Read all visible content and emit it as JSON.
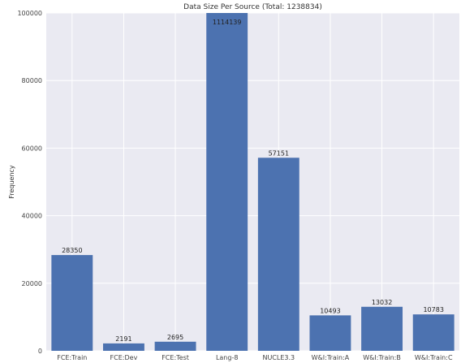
{
  "chart_data": {
    "type": "bar",
    "title": "Data Size Per Source (Total: 1238834)",
    "xlabel": "",
    "ylabel": "Frequency",
    "ylim": [
      0,
      100000
    ],
    "yticks": [
      "0",
      "20000",
      "40000",
      "60000",
      "80000",
      "100000"
    ],
    "categories": [
      "FCE:Train",
      "FCE:Dev",
      "FCE:Test",
      "Lang-8",
      "NUCLE3.3",
      "W&I:Train:A",
      "W&I:Train:B",
      "W&I:Train:C"
    ],
    "values": [
      28350,
      2191,
      2695,
      1114139,
      57151,
      10493,
      13032,
      10783
    ],
    "value_labels": [
      "28350",
      "2191",
      "2695",
      "1114139",
      "57151",
      "10493",
      "13032",
      "10783"
    ],
    "grid": true,
    "colors": {
      "bar": "#4c72b0",
      "plot_bg": "#eaeaf2",
      "grid": "#ffffff"
    }
  }
}
